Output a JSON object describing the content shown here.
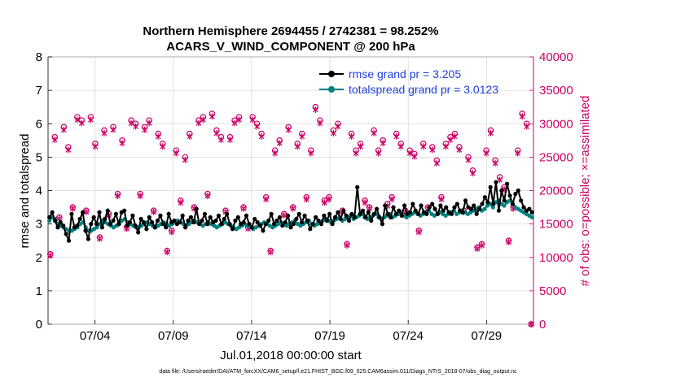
{
  "chart_data": {
    "type": "line",
    "title": "Northern Hemisphere 2694455 / 2742381 = 98.252%",
    "subtitle": "ACARS_V_WIND_COMPONENT @ 200 hPa",
    "xlabel": "Jul.01,2018 00:00:00 start",
    "ylabel": "rmse and totalspread",
    "y2label": "# of obs: o=possible; ×=assimilated",
    "footer": "data file: /Users/raeder/DAI/ATM_forcXX/CAM6_setup/f.e21.FHIST_BGC.f09_025.CAM6assim.011/Diags_NTrS_2018-07/obs_diag_output.nc",
    "xlim": [
      1,
      32
    ],
    "ylim": [
      0,
      8
    ],
    "y2lim": [
      0,
      40000
    ],
    "x_ticks": [
      4,
      9,
      14,
      19,
      24,
      29
    ],
    "x_tick_labels": [
      "07/04",
      "07/09",
      "07/14",
      "07/19",
      "07/24",
      "07/29"
    ],
    "y_ticks": [
      0,
      1,
      2,
      3,
      4,
      5,
      6,
      7,
      8
    ],
    "y_tick_labels": [
      "0",
      "1",
      "2",
      "3",
      "4",
      "5",
      "6",
      "7",
      "8"
    ],
    "y2_ticks": [
      0,
      5000,
      10000,
      15000,
      20000,
      25000,
      30000,
      35000,
      40000
    ],
    "y2_tick_labels": [
      "0",
      "5000",
      "10000",
      "15000",
      "20000",
      "25000",
      "30000",
      "35000",
      "40000"
    ],
    "legend": {
      "location": "top-right"
    },
    "series": [
      {
        "name": "rmse grand pr = 3.205",
        "color": "#000000",
        "values": [
          3.2,
          3.35,
          3.1,
          2.9,
          3.05,
          2.95,
          2.7,
          2.5,
          3.3,
          2.9,
          2.95,
          3.15,
          3.35,
          2.8,
          2.55,
          3.0,
          3.2,
          3.0,
          3.35,
          2.9,
          3.15,
          3.4,
          3.0,
          3.1,
          3.3,
          3.0,
          3.35,
          3.4,
          2.95,
          3.05,
          3.25,
          2.95,
          2.75,
          3.15,
          3.05,
          2.85,
          3.2,
          3.05,
          2.9,
          3.1,
          3.25,
          3.0,
          2.9,
          3.3,
          3.05,
          3.1,
          3.0,
          3.05,
          3.25,
          2.9,
          3.1,
          3.2,
          3.05,
          3.45,
          3.0,
          3.1,
          3.3,
          3.0,
          3.2,
          3.05,
          3.1,
          3.25,
          3.0,
          3.15,
          3.3,
          3.0,
          2.85,
          3.1,
          3.2,
          3.0,
          3.05,
          3.25,
          3.0,
          2.9,
          3.15,
          3.05,
          2.95,
          2.8,
          3.0,
          3.1,
          3.3,
          3.0,
          3.1,
          3.2,
          2.95,
          3.05,
          3.25,
          2.9,
          3.0,
          3.15,
          3.3,
          3.05,
          3.25,
          3.1,
          2.85,
          3.0,
          3.2,
          3.1,
          3.0,
          3.25,
          3.1,
          3.3,
          3.0,
          3.2,
          3.35,
          3.15,
          3.4,
          3.25,
          3.1,
          3.3,
          3.2,
          4.1,
          3.3,
          3.4,
          3.2,
          3.35,
          3.1,
          3.3,
          3.45,
          3.2,
          3.0,
          3.55,
          3.3,
          3.2,
          3.5,
          3.3,
          3.4,
          3.25,
          3.55,
          3.3,
          3.35,
          3.6,
          3.4,
          3.3,
          3.55,
          3.35,
          3.3,
          3.5,
          3.6,
          3.45,
          3.3,
          3.55,
          3.4,
          3.5,
          3.35,
          3.3,
          3.5,
          3.6,
          3.4,
          3.35,
          3.7,
          3.5,
          3.45,
          3.55,
          3.3,
          3.45,
          3.6,
          3.8,
          3.65,
          4.1,
          3.6,
          4.25,
          3.4,
          4.0,
          3.7,
          4.2,
          3.85,
          3.6,
          3.9,
          4.0,
          3.7,
          3.5,
          3.4,
          3.45,
          3.35
        ]
      },
      {
        "name": "totalspread grand pr = 3.0123",
        "color": "#00807f",
        "values": [
          3.1,
          3.2,
          3.15,
          3.0,
          2.95,
          2.9,
          2.85,
          2.8,
          2.8,
          2.85,
          2.9,
          3.0,
          3.05,
          2.9,
          2.8,
          2.8,
          2.85,
          2.9,
          3.0,
          3.1,
          3.05,
          3.0,
          2.95,
          2.9,
          2.95,
          3.0,
          3.1,
          3.15,
          3.05,
          3.0,
          2.95,
          2.9,
          2.9,
          2.95,
          3.0,
          3.05,
          3.0,
          2.95,
          2.9,
          2.95,
          3.0,
          3.05,
          3.0,
          2.95,
          3.0,
          3.05,
          3.1,
          3.05,
          3.0,
          2.95,
          3.0,
          3.05,
          3.1,
          3.05,
          3.0,
          2.95,
          3.0,
          3.05,
          3.0,
          2.95,
          2.9,
          2.95,
          3.0,
          3.05,
          3.0,
          2.95,
          2.9,
          2.85,
          2.9,
          2.95,
          3.0,
          2.95,
          2.9,
          2.85,
          2.9,
          2.95,
          3.0,
          3.05,
          3.0,
          2.95,
          2.9,
          2.95,
          3.0,
          3.05,
          3.0,
          2.95,
          3.0,
          3.05,
          3.1,
          3.0,
          2.95,
          3.0,
          3.05,
          3.1,
          3.0,
          2.95,
          3.0,
          3.05,
          3.1,
          3.15,
          3.1,
          3.05,
          3.1,
          3.15,
          3.2,
          3.1,
          3.15,
          3.2,
          3.25,
          3.15,
          3.2,
          3.25,
          3.3,
          3.2,
          3.15,
          3.2,
          3.25,
          3.3,
          3.2,
          3.15,
          3.2,
          3.25,
          3.3,
          3.2,
          3.25,
          3.3,
          3.35,
          3.25,
          3.2,
          3.25,
          3.3,
          3.35,
          3.3,
          3.25,
          3.3,
          3.35,
          3.4,
          3.3,
          3.25,
          3.3,
          3.35,
          3.3,
          3.25,
          3.3,
          3.35,
          3.4,
          3.3,
          3.35,
          3.4,
          3.35,
          3.3,
          3.35,
          3.4,
          3.45,
          3.5,
          3.4,
          3.45,
          3.55,
          3.6,
          3.5,
          3.65,
          3.7,
          3.6,
          3.55,
          3.65,
          3.7,
          3.6,
          3.5,
          3.45,
          3.4,
          3.35,
          3.3,
          3.25,
          3.2
        ]
      }
    ],
    "obs_series": [
      {
        "name": "possible",
        "marker": "o",
        "color": "#cc0066",
        "values": [
          10500,
          28000,
          16000,
          29500,
          26500,
          17500,
          31000,
          30500,
          17000,
          31000,
          27000,
          13000,
          29000,
          16500,
          29500,
          19500,
          27500,
          14500,
          30500,
          30000,
          19500,
          29500,
          30500,
          17000,
          28500,
          27000,
          11000,
          14000,
          26000,
          18500,
          25000,
          28500,
          17500,
          30500,
          31000,
          19500,
          31500,
          29000,
          28000,
          17000,
          28000,
          30500,
          31000,
          17500,
          14500,
          31000,
          30000,
          28500,
          19000,
          11000,
          26000,
          27500,
          16500,
          29500,
          17500,
          27000,
          28500,
          19000,
          26000,
          32500,
          30500,
          18500,
          19000,
          29000,
          30000,
          17000,
          12000,
          28500,
          26000,
          27000,
          18500,
          17500,
          29000,
          26000,
          27500,
          18000,
          19000,
          28500,
          27000,
          17000,
          26000,
          25500,
          14000,
          27000,
          17500,
          26500,
          24500,
          19000,
          27000,
          28000,
          28500,
          26500,
          17000,
          25000,
          23000,
          11500,
          12000,
          26000,
          29000,
          24500,
          22000,
          20500,
          12500,
          17500,
          26000,
          31500,
          30000,
          0
        ]
      },
      {
        "name": "assimilated",
        "marker": "x",
        "color": "#cc0066",
        "values": [
          10300,
          27600,
          15800,
          29100,
          26100,
          17300,
          30600,
          30100,
          16800,
          30600,
          26600,
          12800,
          28600,
          16300,
          29100,
          19200,
          27100,
          14300,
          30100,
          29600,
          19200,
          29100,
          30100,
          16800,
          28100,
          26600,
          10800,
          13800,
          25600,
          18200,
          24600,
          28100,
          17300,
          30100,
          30600,
          19200,
          31100,
          28600,
          27600,
          16800,
          27600,
          30100,
          30600,
          17300,
          14300,
          30600,
          29600,
          28100,
          18700,
          10800,
          25600,
          27100,
          16300,
          29100,
          17300,
          26600,
          28100,
          18700,
          25600,
          32100,
          30100,
          18200,
          18700,
          28600,
          29600,
          16800,
          11800,
          28100,
          25600,
          26600,
          18200,
          17300,
          28600,
          25600,
          27100,
          17700,
          18700,
          28100,
          26600,
          16800,
          25600,
          25100,
          13800,
          26600,
          17300,
          26100,
          24100,
          18700,
          26600,
          27600,
          28100,
          26100,
          16800,
          24600,
          22600,
          11300,
          11800,
          25600,
          28600,
          24100,
          21600,
          20200,
          12300,
          17300,
          25600,
          31100,
          29600,
          0
        ]
      }
    ]
  },
  "legend_items": {
    "rmse": "rmse grand pr = 3.205",
    "spread": "totalspread grand pr = 3.0123"
  }
}
